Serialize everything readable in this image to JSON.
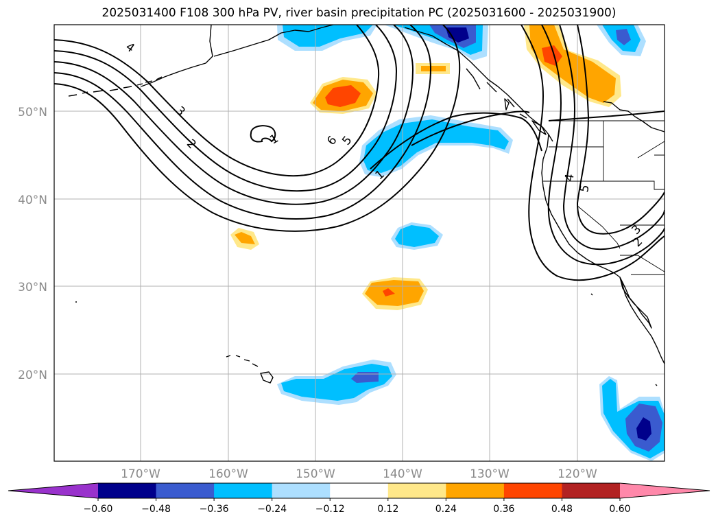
{
  "title": "2025031400 F108 300 hPa PV, river basin precipitation PC (2025031600 - 2025031900)",
  "map": {
    "lat_labels": [
      "50°N",
      "40°N",
      "30°N",
      "20°N"
    ],
    "lon_labels": [
      "170°W",
      "160°W",
      "150°W",
      "140°W",
      "130°W",
      "120°W"
    ],
    "pv_contour_labels": [
      "4",
      "3",
      "2",
      "6",
      "5",
      "1",
      "1",
      "4",
      "5",
      "3",
      "2"
    ]
  },
  "colorbar": {
    "tick_labels": [
      "−0.60",
      "−0.48",
      "−0.36",
      "−0.24",
      "−0.12",
      "0.12",
      "0.24",
      "0.36",
      "0.48",
      "0.60"
    ],
    "colors": [
      "#9932cc",
      "#00008b",
      "#3a5bcf",
      "#00bfff",
      "#addfff",
      "#ffffff",
      "#ffe88a",
      "#ffa500",
      "#ff4500",
      "#b22222",
      "#ff88aa"
    ]
  },
  "colors": {
    "grid": "#b0b0b0",
    "coast": "#000000",
    "label_gray": "#8a8a8a"
  }
}
